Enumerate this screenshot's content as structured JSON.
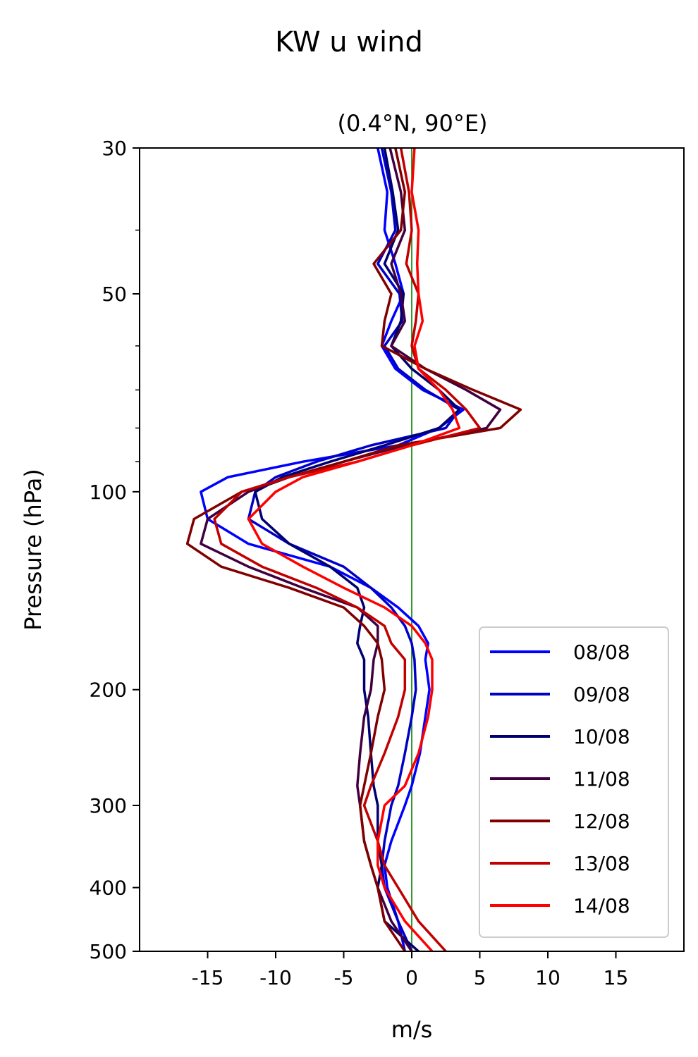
{
  "chart_data": {
    "type": "line",
    "title": "KW u wind",
    "subtitle": "(0.4°N, 90°E)",
    "xlabel": "m/s",
    "ylabel": "Pressure (hPa)",
    "xlim": [
      -20,
      20
    ],
    "ylim": [
      500,
      30
    ],
    "y_scale": "log",
    "xticks": [
      -15,
      -10,
      -5,
      0,
      5,
      10,
      15
    ],
    "xtick_labels": [
      "-15",
      "-10",
      "-5",
      "0",
      "5",
      "10",
      "15"
    ],
    "yticks": [
      30,
      50,
      100,
      200,
      300,
      400,
      500
    ],
    "ytick_labels": [
      "30",
      "50",
      "100",
      "200",
      "300",
      "400",
      "500"
    ],
    "y_minor_ticks": [
      40,
      60,
      70,
      80,
      90
    ],
    "reference_line": {
      "x": 0,
      "color": "#008000"
    },
    "grid": false,
    "legend_position": "bottom-right",
    "pressure_levels": [
      30,
      35,
      40,
      45,
      50,
      55,
      60,
      65,
      70,
      75,
      80,
      85,
      90,
      95,
      100,
      110,
      120,
      130,
      140,
      150,
      160,
      170,
      180,
      200,
      220,
      250,
      280,
      300,
      340,
      370,
      400,
      450,
      500
    ],
    "series": [
      {
        "name": "08/08",
        "color": "#0000ff",
        "values": [
          -2.5,
          -1.8,
          -2.0,
          -1.2,
          -0.6,
          -1.5,
          -2.2,
          -1.2,
          0.8,
          3.8,
          2.0,
          -1.0,
          -8.0,
          -13.5,
          -15.5,
          -15.0,
          -12.0,
          -6.0,
          -3.0,
          -1.0,
          0.5,
          1.2,
          1.0,
          1.3,
          1.0,
          0.6,
          0.0,
          -0.5,
          -1.5,
          -2.0,
          -1.8,
          -1.0,
          -0.5
        ]
      },
      {
        "name": "09/08",
        "color": "#0000c8",
        "values": [
          -2.2,
          -1.5,
          -1.2,
          -2.5,
          -0.9,
          -0.7,
          -2.0,
          -1.0,
          1.0,
          3.5,
          2.5,
          -3.0,
          -7.0,
          -10.0,
          -11.5,
          -12.0,
          -9.0,
          -5.0,
          -3.0,
          -1.5,
          -0.5,
          0.0,
          0.2,
          0.3,
          0.0,
          -0.5,
          -1.0,
          -1.5,
          -2.0,
          -2.2,
          -2.0,
          -1.0,
          0.0
        ]
      },
      {
        "name": "10/08",
        "color": "#000070",
        "values": [
          -2.0,
          -1.4,
          -1.0,
          -2.0,
          -0.6,
          -0.8,
          -1.5,
          0.0,
          2.0,
          3.5,
          2.0,
          -2.0,
          -6.0,
          -9.5,
          -11.5,
          -11.0,
          -9.0,
          -6.0,
          -4.0,
          -3.5,
          -3.8,
          -4.0,
          -3.5,
          -3.5,
          -3.2,
          -3.0,
          -2.8,
          -2.5,
          -2.5,
          -2.2,
          -2.5,
          -2.0,
          0.5
        ]
      },
      {
        "name": "11/08",
        "color": "#400040",
        "values": [
          -1.6,
          -0.8,
          -0.5,
          -1.5,
          -0.8,
          -0.5,
          -1.5,
          1.0,
          4.0,
          6.5,
          5.5,
          -0.5,
          -5.0,
          -9.0,
          -12.0,
          -15.0,
          -15.5,
          -12.0,
          -8.0,
          -4.0,
          -2.5,
          -2.5,
          -2.8,
          -3.0,
          -3.5,
          -3.8,
          -4.0,
          -3.8,
          -3.5,
          -3.0,
          -2.5,
          -1.5,
          0.0
        ]
      },
      {
        "name": "12/08",
        "color": "#800000",
        "values": [
          -1.2,
          -0.5,
          -0.8,
          -2.8,
          -1.5,
          -2.0,
          -2.2,
          1.0,
          4.5,
          8.0,
          6.5,
          -1.0,
          -5.0,
          -9.0,
          -12.5,
          -16.0,
          -16.5,
          -14.0,
          -9.0,
          -5.0,
          -3.5,
          -2.5,
          -2.2,
          -2.0,
          -2.5,
          -3.0,
          -3.5,
          -3.8,
          -3.5,
          -3.0,
          -2.5,
          -2.0,
          -0.5
        ]
      },
      {
        "name": "13/08",
        "color": "#c00000",
        "values": [
          -0.8,
          -0.2,
          0.0,
          -0.4,
          0.5,
          0.3,
          0.0,
          0.5,
          2.5,
          4.0,
          5.0,
          0.0,
          -4.0,
          -9.0,
          -12.5,
          -14.5,
          -14.0,
          -11.0,
          -7.0,
          -4.0,
          -2.0,
          -1.5,
          -0.5,
          -0.5,
          -1.0,
          -2.0,
          -3.0,
          -3.5,
          -2.5,
          -2.0,
          -1.0,
          0.5,
          2.5
        ]
      },
      {
        "name": "14/08",
        "color": "#ff0000",
        "values": [
          0.2,
          0.0,
          0.5,
          0.4,
          0.5,
          0.8,
          0.2,
          0.5,
          2.0,
          3.0,
          3.5,
          0.0,
          -4.0,
          -8.0,
          -10.0,
          -12.0,
          -11.0,
          -8.0,
          -5.0,
          -2.0,
          0.0,
          1.0,
          1.5,
          1.5,
          1.2,
          0.5,
          -0.5,
          -2.0,
          -2.5,
          -2.5,
          -2.0,
          -0.5,
          1.5
        ]
      }
    ]
  }
}
